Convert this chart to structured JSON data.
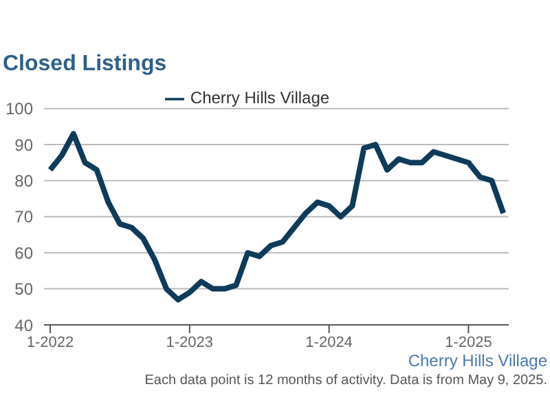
{
  "chart_data": {
    "type": "line",
    "title": "Closed Listings",
    "x": [
      "2022-01",
      "2022-02",
      "2022-03",
      "2022-04",
      "2022-05",
      "2022-06",
      "2022-07",
      "2022-08",
      "2022-09",
      "2022-10",
      "2022-11",
      "2022-12",
      "2023-01",
      "2023-02",
      "2023-03",
      "2023-04",
      "2023-05",
      "2023-06",
      "2023-07",
      "2023-08",
      "2023-09",
      "2023-10",
      "2023-11",
      "2023-12",
      "2024-01",
      "2024-02",
      "2024-03",
      "2024-04",
      "2024-05",
      "2024-06",
      "2024-07",
      "2024-08",
      "2024-09",
      "2024-10",
      "2024-11",
      "2024-12",
      "2025-01",
      "2025-02",
      "2025-03",
      "2025-04"
    ],
    "series": [
      {
        "name": "Cherry Hills Village",
        "color": "#0f3b5a",
        "values": [
          83,
          87,
          93,
          85,
          83,
          74,
          68,
          67,
          64,
          58,
          50,
          47,
          49,
          52,
          50,
          50,
          51,
          60,
          59,
          62,
          63,
          67,
          71,
          74,
          73,
          70,
          73,
          89,
          90,
          83,
          86,
          85,
          85,
          88,
          87,
          86,
          85,
          81,
          80,
          71
        ]
      }
    ],
    "xlim": [
      "2021-12-15",
      "2025-04-15"
    ],
    "xticks": [
      {
        "value": "2022-01",
        "label": "1-2022"
      },
      {
        "value": "2023-01",
        "label": "1-2023"
      },
      {
        "value": "2024-01",
        "label": "1-2024"
      },
      {
        "value": "2025-01",
        "label": "1-2025"
      }
    ],
    "ylim": [
      40,
      100
    ],
    "yticks": [
      40,
      50,
      60,
      70,
      80,
      90,
      100
    ],
    "grid": "y",
    "legend": "top",
    "marker": "none",
    "line_style": "solid",
    "annotations": [
      "Each data point is 12 months of activity. Data is from May 9, 2025.",
      "Cherry Hills Village"
    ]
  }
}
